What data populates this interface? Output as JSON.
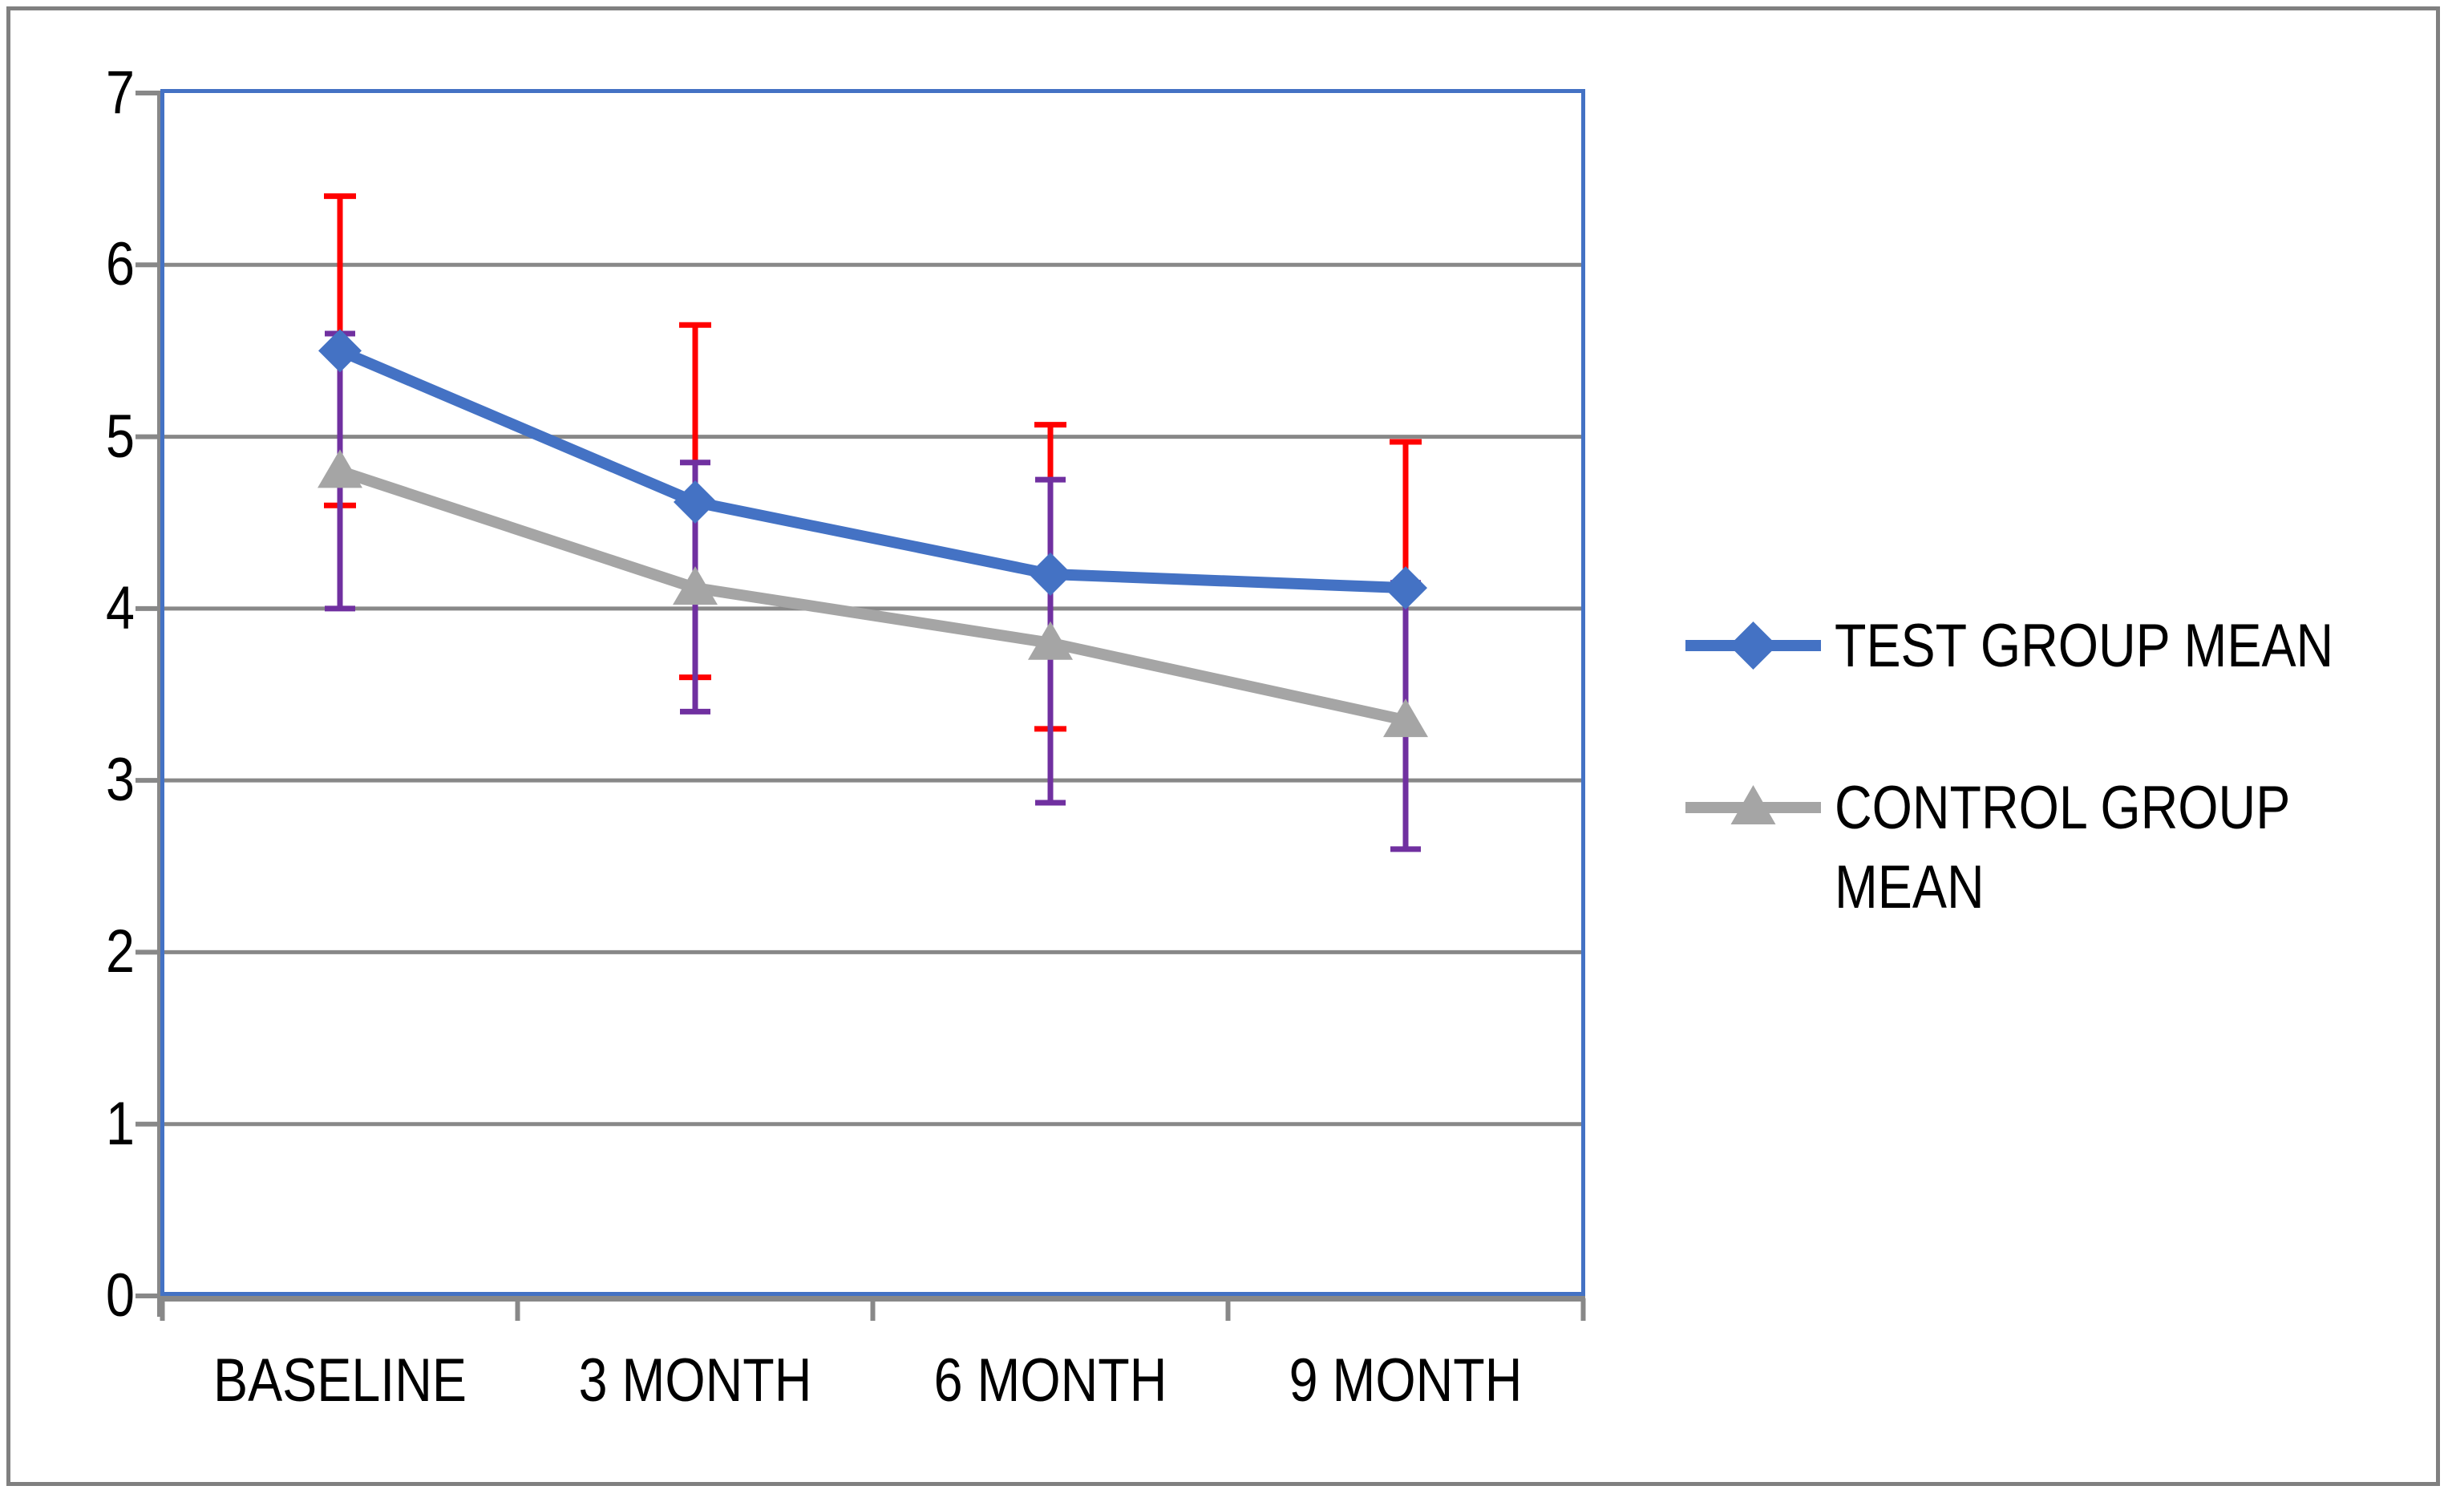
{
  "chart_data": {
    "type": "line",
    "title": "",
    "xlabel": "",
    "ylabel": "",
    "categories": [
      "BASELINE",
      "3 MONTH",
      "6 MONTH",
      "9 MONTH"
    ],
    "y_ticks": [
      0,
      1,
      2,
      3,
      4,
      5,
      6,
      7
    ],
    "ylim": [
      0,
      7
    ],
    "grid": true,
    "legend_position": "right",
    "colors": {
      "plot_border": "#4472C4",
      "gridline": "#888888",
      "axis_line": "#888888",
      "figure_border": "#808080",
      "text": "#000000"
    },
    "series": [
      {
        "name": "TEST GROUP MEAN",
        "marker": "diamond",
        "color": "#4472C4",
        "values": [
          5.5,
          4.62,
          4.2,
          4.12
        ],
        "error_color": "#FF0000",
        "error_upper": [
          6.4,
          5.65,
          5.07,
          4.97
        ],
        "error_lower": [
          4.6,
          3.6,
          3.3,
          3.3
        ]
      },
      {
        "name": "CONTROL GROUP MEAN",
        "marker": "triangle",
        "color": "#A5A5A5",
        "values": [
          4.8,
          4.12,
          3.8,
          3.35
        ],
        "error_color": "#7030A0",
        "error_upper": [
          5.6,
          4.85,
          4.75,
          4.15
        ],
        "error_lower": [
          4.0,
          3.4,
          2.87,
          2.6
        ]
      }
    ]
  }
}
